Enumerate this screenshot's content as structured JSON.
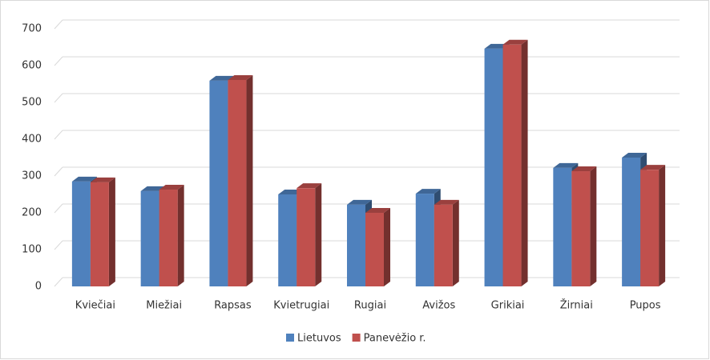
{
  "chart_data": {
    "type": "bar3d",
    "categories": [
      "Kviečiai",
      "Miežiai",
      "Rapsas",
      "Kvietrugiai",
      "Rugiai",
      "Avižos",
      "Grikiai",
      "Žirniai",
      "Pupos"
    ],
    "series": [
      {
        "name": "Lietuvos",
        "color": "#4f81bd",
        "values": [
          285,
          259,
          559,
          250,
          222,
          252,
          646,
          322,
          350
        ]
      },
      {
        "name": "Panevėžio r.",
        "color": "#c0504d",
        "values": [
          283,
          263,
          561,
          267,
          200,
          222,
          657,
          313,
          317
        ]
      }
    ],
    "ylim": [
      0,
      700
    ],
    "yticks": [
      0,
      100,
      200,
      300,
      400,
      500,
      600,
      700
    ],
    "grid": true,
    "legend": "bottom"
  }
}
